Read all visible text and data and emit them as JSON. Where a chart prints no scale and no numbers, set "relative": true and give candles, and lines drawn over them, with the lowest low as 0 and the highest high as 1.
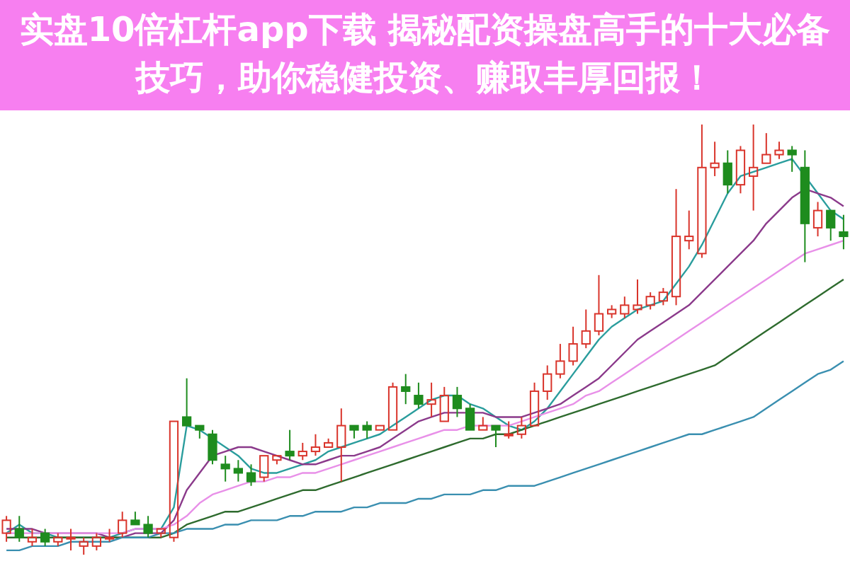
{
  "chart_data": {
    "type": "candlestick",
    "relative": true,
    "title": "实盘10倍杠杆app下载 揭秘配资操盘高手的十大必备技巧，助你稳健投资、赚取丰厚回报！",
    "categories": [
      null,
      null,
      null,
      null,
      null,
      null,
      null,
      null,
      null,
      null,
      null,
      null,
      null,
      null,
      null,
      null,
      null,
      null,
      null,
      null,
      null,
      null,
      null,
      null,
      null,
      null,
      null,
      null,
      null,
      null,
      null,
      null,
      null,
      null,
      null,
      null,
      null,
      null,
      null,
      null,
      null,
      null,
      null,
      null,
      null,
      null,
      null,
      null,
      null,
      null,
      null,
      null,
      null,
      null,
      null,
      null,
      null,
      null,
      null,
      null,
      null,
      null,
      null,
      null,
      null,
      null
    ],
    "ohlc": [
      [
        0.05,
        0.09,
        0.03,
        0.08
      ],
      [
        0.06,
        0.09,
        0.03,
        0.04
      ],
      [
        0.03,
        0.06,
        0.02,
        0.04
      ],
      [
        0.05,
        0.06,
        0.02,
        0.03
      ],
      [
        0.03,
        0.05,
        0.02,
        0.04
      ],
      [
        0.04,
        0.06,
        0.01,
        0.04
      ],
      [
        0.02,
        0.04,
        0,
        0.03
      ],
      [
        0.02,
        0.05,
        0.01,
        0.04
      ],
      [
        0.04,
        0.06,
        0.03,
        0.04
      ],
      [
        0.05,
        0.1,
        0.04,
        0.08
      ],
      [
        0.08,
        0.1,
        0.07,
        0.07
      ],
      [
        0.07,
        0.09,
        0.04,
        0.05
      ],
      [
        0.05,
        0.06,
        0.04,
        0.06
      ],
      [
        0.04,
        0.31,
        0.03,
        0.31
      ],
      [
        0.32,
        0.41,
        0.3,
        0.3
      ],
      [
        0.3,
        0.3,
        0.27,
        0.29
      ],
      [
        0.28,
        0.29,
        0.21,
        0.22
      ],
      [
        0.21,
        0.23,
        0.17,
        0.2
      ],
      [
        0.2,
        0.22,
        0.17,
        0.19
      ],
      [
        0.19,
        0.21,
        0.16,
        0.17
      ],
      [
        0.18,
        0.23,
        0.17,
        0.23
      ],
      [
        0.22,
        0.23,
        0.21,
        0.23
      ],
      [
        0.24,
        0.29,
        0.22,
        0.23
      ],
      [
        0.23,
        0.26,
        0.22,
        0.24
      ],
      [
        0.24,
        0.28,
        0.23,
        0.25
      ],
      [
        0.25,
        0.27,
        0.25,
        0.26
      ],
      [
        0.25,
        0.34,
        0.17,
        0.3
      ],
      [
        0.3,
        0.3,
        0.27,
        0.29
      ],
      [
        0.3,
        0.31,
        0.27,
        0.29
      ],
      [
        0.29,
        0.3,
        0.29,
        0.3
      ],
      [
        0.29,
        0.4,
        0.29,
        0.39
      ],
      [
        0.39,
        0.42,
        0.35,
        0.38
      ],
      [
        0.37,
        0.4,
        0.34,
        0.35
      ],
      [
        0.35,
        0.4,
        0.32,
        0.36
      ],
      [
        0.31,
        0.39,
        0.31,
        0.37
      ],
      [
        0.37,
        0.39,
        0.32,
        0.34
      ],
      [
        0.34,
        0.35,
        0.29,
        0.29
      ],
      [
        0.29,
        0.32,
        0.29,
        0.3
      ],
      [
        0.3,
        0.3,
        0.25,
        0.29
      ],
      [
        0.28,
        0.31,
        0.27,
        0.28
      ],
      [
        0.28,
        0.32,
        0.27,
        0.3
      ],
      [
        0.3,
        0.4,
        0.3,
        0.38
      ],
      [
        0.38,
        0.44,
        0.36,
        0.42
      ],
      [
        0.42,
        0.49,
        0.41,
        0.45
      ],
      [
        0.45,
        0.53,
        0.44,
        0.49
      ],
      [
        0.49,
        0.57,
        0.48,
        0.52
      ],
      [
        0.52,
        0.65,
        0.51,
        0.56
      ],
      [
        0.56,
        0.58,
        0.55,
        0.57
      ],
      [
        0.56,
        0.6,
        0.55,
        0.58
      ],
      [
        0.57,
        0.64,
        0.56,
        0.58
      ],
      [
        0.58,
        0.61,
        0.57,
        0.6
      ],
      [
        0.59,
        0.62,
        0.58,
        0.61
      ],
      [
        0.6,
        0.85,
        0.58,
        0.74
      ],
      [
        0.73,
        0.8,
        0.71,
        0.74
      ],
      [
        0.7,
        1,
        0.69,
        0.9
      ],
      [
        0.9,
        0.96,
        0.88,
        0.91
      ],
      [
        0.91,
        0.94,
        0.84,
        0.86
      ],
      [
        0.86,
        0.95,
        0.84,
        0.94
      ],
      [
        0.88,
        1,
        0.8,
        0.9
      ],
      [
        0.91,
        0.98,
        0.91,
        0.93
      ],
      [
        0.93,
        0.96,
        0.92,
        0.94
      ],
      [
        0.94,
        0.95,
        0.89,
        0.93
      ],
      [
        0.9,
        0.94,
        0.68,
        0.77
      ],
      [
        0.76,
        0.82,
        0.74,
        0.8
      ],
      [
        0.8,
        0.8,
        0.73,
        0.76
      ],
      [
        0.75,
        0.79,
        0.71,
        0.74
      ]
    ],
    "series": [
      {
        "type": "line",
        "color": "#2a9d9d",
        "values": [
          0.05,
          0.07,
          0.05,
          0.05,
          0.04,
          0.04,
          0.04,
          0.04,
          0.04,
          0.05,
          0.06,
          0.06,
          0.06,
          0.11,
          0.3,
          0.29,
          0.27,
          0.25,
          0.23,
          0.2,
          0.19,
          0.19,
          0.2,
          0.21,
          0.22,
          0.24,
          0.25,
          0.26,
          0.27,
          0.28,
          0.3,
          0.32,
          0.34,
          0.36,
          0.37,
          0.37,
          0.35,
          0.34,
          0.32,
          0.3,
          0.29,
          0.31,
          0.34,
          0.38,
          0.42,
          0.46,
          0.5,
          0.53,
          0.55,
          0.57,
          0.58,
          0.59,
          0.63,
          0.67,
          0.72,
          0.78,
          0.84,
          0.88,
          0.89,
          0.9,
          0.91,
          0.92,
          0.88,
          0.84,
          0.8,
          0.78
        ]
      },
      {
        "type": "line",
        "color": "#8b3a8b",
        "values": [
          0.06,
          0.06,
          0.06,
          0.05,
          0.05,
          0.05,
          0.05,
          0.05,
          0.04,
          0.04,
          0.05,
          0.05,
          0.05,
          0.08,
          0.15,
          0.19,
          0.23,
          0.24,
          0.25,
          0.25,
          0.24,
          0.23,
          0.22,
          0.21,
          0.21,
          0.22,
          0.23,
          0.23,
          0.24,
          0.25,
          0.27,
          0.29,
          0.31,
          0.32,
          0.33,
          0.33,
          0.33,
          0.33,
          0.32,
          0.32,
          0.32,
          0.33,
          0.34,
          0.35,
          0.37,
          0.39,
          0.41,
          0.44,
          0.47,
          0.5,
          0.52,
          0.54,
          0.56,
          0.58,
          0.61,
          0.64,
          0.67,
          0.7,
          0.73,
          0.77,
          0.8,
          0.83,
          0.85,
          0.84,
          0.83,
          0.81
        ]
      },
      {
        "type": "line",
        "color": "#e890e8",
        "values": [
          0.05,
          0.05,
          0.05,
          0.05,
          0.05,
          0.05,
          0.05,
          0.05,
          0.05,
          0.05,
          0.06,
          0.06,
          0.06,
          0.07,
          0.09,
          0.12,
          0.14,
          0.15,
          0.16,
          0.17,
          0.17,
          0.18,
          0.18,
          0.19,
          0.19,
          0.2,
          0.21,
          0.22,
          0.23,
          0.24,
          0.25,
          0.26,
          0.27,
          0.28,
          0.29,
          0.29,
          0.3,
          0.3,
          0.3,
          0.3,
          0.31,
          0.32,
          0.33,
          0.34,
          0.35,
          0.37,
          0.38,
          0.4,
          0.42,
          0.44,
          0.46,
          0.48,
          0.5,
          0.52,
          0.54,
          0.56,
          0.58,
          0.6,
          0.62,
          0.64,
          0.66,
          0.68,
          0.7,
          0.71,
          0.72,
          0.73
        ]
      },
      {
        "type": "line",
        "color": "#2e6b2e",
        "values": [
          0.04,
          0.04,
          0.04,
          0.04,
          0.04,
          0.04,
          0.04,
          0.04,
          0.04,
          0.04,
          0.04,
          0.04,
          0.04,
          0.05,
          0.07,
          0.08,
          0.09,
          0.1,
          0.1,
          0.11,
          0.12,
          0.13,
          0.14,
          0.15,
          0.15,
          0.16,
          0.17,
          0.18,
          0.19,
          0.2,
          0.21,
          0.22,
          0.23,
          0.24,
          0.25,
          0.26,
          0.27,
          0.27,
          0.28,
          0.28,
          0.29,
          0.3,
          0.31,
          0.32,
          0.33,
          0.34,
          0.35,
          0.36,
          0.37,
          0.38,
          0.39,
          0.4,
          0.41,
          0.42,
          0.43,
          0.44,
          0.46,
          0.48,
          0.5,
          0.52,
          0.54,
          0.56,
          0.58,
          0.6,
          0.62,
          0.64
        ]
      },
      {
        "type": "line",
        "color": "#3a8fb0",
        "values": [
          0.01,
          0.01,
          0.02,
          0.02,
          0.02,
          0.03,
          0.03,
          0.03,
          0.03,
          0.04,
          0.04,
          0.04,
          0.05,
          0.05,
          0.06,
          0.06,
          0.06,
          0.07,
          0.07,
          0.08,
          0.08,
          0.08,
          0.09,
          0.09,
          0.1,
          0.1,
          0.1,
          0.11,
          0.11,
          0.12,
          0.12,
          0.12,
          0.13,
          0.13,
          0.14,
          0.14,
          0.14,
          0.15,
          0.15,
          0.16,
          0.16,
          0.16,
          0.17,
          0.18,
          0.19,
          0.2,
          0.21,
          0.22,
          0.23,
          0.24,
          0.25,
          0.26,
          0.27,
          0.28,
          0.28,
          0.29,
          0.3,
          0.31,
          0.32,
          0.34,
          0.36,
          0.38,
          0.4,
          0.42,
          0.43,
          0.45
        ]
      }
    ]
  }
}
